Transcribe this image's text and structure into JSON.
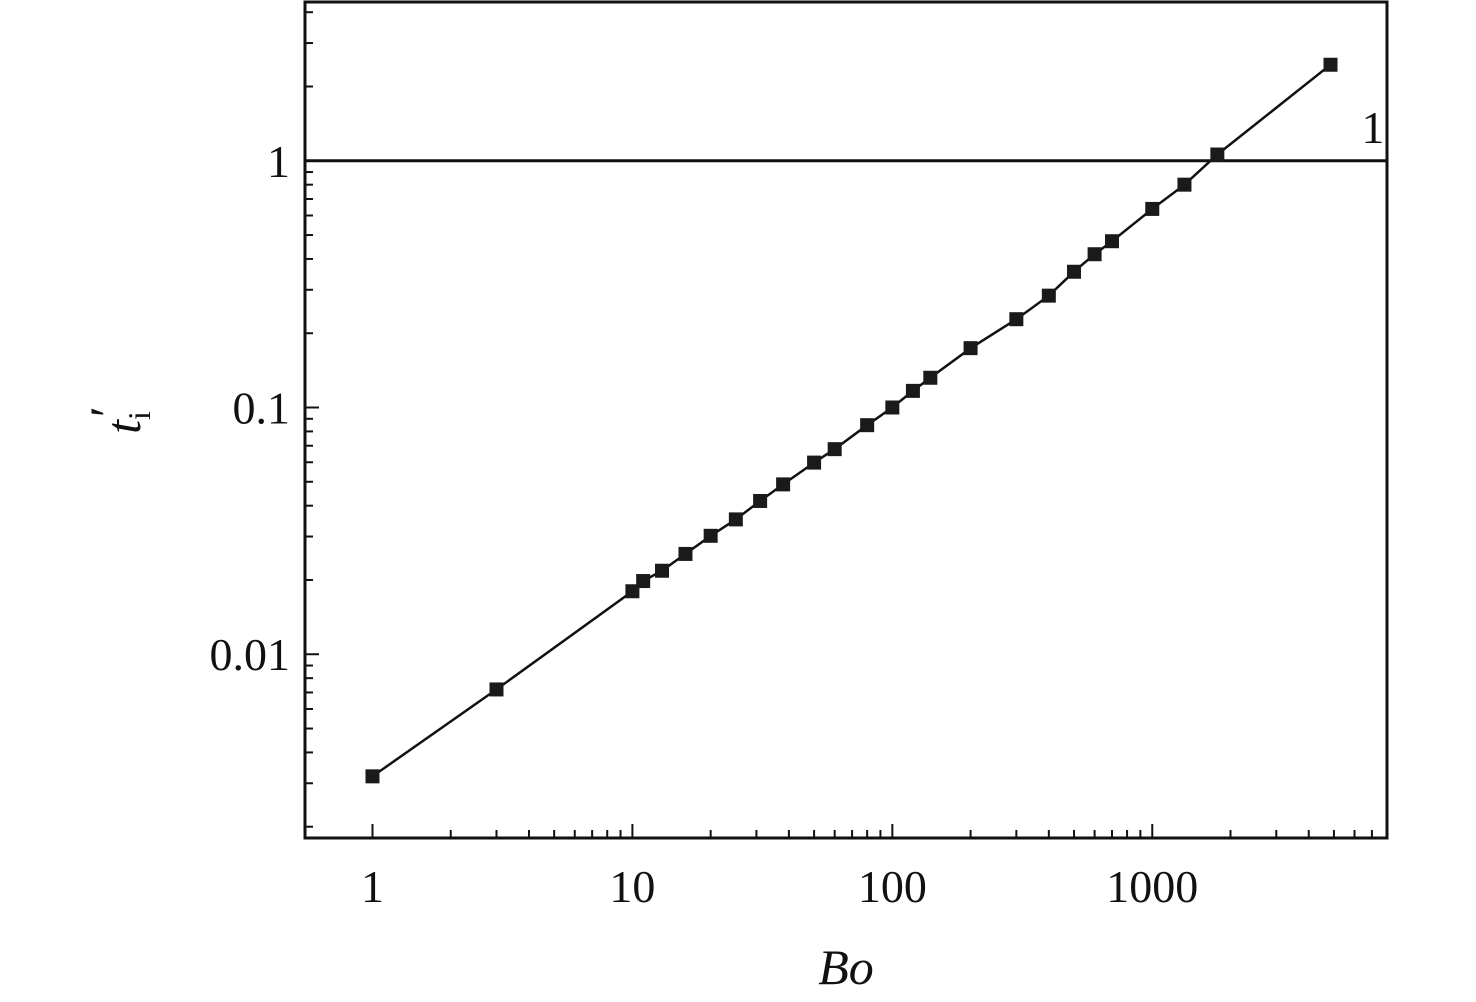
{
  "chart_data": {
    "type": "line",
    "x_scale": "log",
    "y_scale": "log",
    "xlim": [
      0.55,
      8000
    ],
    "ylim": [
      0.0018,
      4.4
    ],
    "xlabel": "Bo",
    "ylabel_main": "t",
    "ylabel_sub": "i",
    "ylabel_prime": "′",
    "x_ticks": [
      {
        "value": 1,
        "label": "1"
      },
      {
        "value": 10,
        "label": "10"
      },
      {
        "value": 100,
        "label": "100"
      },
      {
        "value": 1000,
        "label": "1000"
      }
    ],
    "y_ticks": [
      {
        "value": 0.01,
        "label": "0.01"
      },
      {
        "value": 0.1,
        "label": "0.1"
      },
      {
        "value": 1,
        "label": "1"
      }
    ],
    "reference_line": {
      "y": 1,
      "label": "1"
    },
    "grid": false,
    "marker": "square",
    "colors": {
      "line": "#111111",
      "marker": "#1a1a1a"
    },
    "series": [
      {
        "x": [
          1,
          3,
          10,
          11,
          13,
          16,
          20,
          25,
          31,
          38,
          50,
          60,
          80,
          100,
          120,
          140,
          200,
          300,
          400,
          500,
          600,
          700,
          1000,
          1330,
          1780,
          4850
        ],
        "y": [
          0.0032,
          0.0072,
          0.018,
          0.0198,
          0.0218,
          0.0255,
          0.0302,
          0.0352,
          0.0418,
          0.0488,
          0.0598,
          0.0678,
          0.0848,
          0.1,
          0.1168,
          0.132,
          0.174,
          0.228,
          0.284,
          0.355,
          0.418,
          0.472,
          0.638,
          0.8,
          1.06,
          2.45
        ]
      }
    ]
  }
}
